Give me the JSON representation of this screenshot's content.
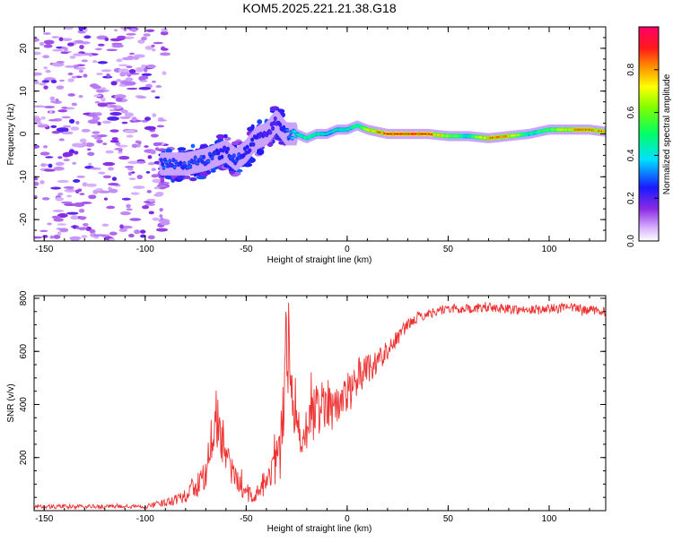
{
  "title": "KOM5.2025.221.21.38.G18",
  "chart_data": [
    {
      "type": "heatmap",
      "title": "KOM5.2025.221.21.38.G18",
      "xlabel": "Height of straight line (km)",
      "ylabel": "Frequency (Hz)",
      "xlim": [
        -155,
        128
      ],
      "ylim": [
        -25,
        25
      ],
      "xticks": [
        -150,
        -100,
        -50,
        0,
        50,
        100
      ],
      "yticks": [
        -20,
        -10,
        0,
        10,
        20
      ],
      "colorbar": {
        "label": "Normalized spectral amplitude",
        "range": [
          0,
          1
        ],
        "ticks": [
          0.0,
          0.2,
          0.4,
          0.6,
          0.8
        ],
        "tick_labels": [
          "0.0",
          "0.2",
          "0.4",
          "0.6",
          "0.8"
        ]
      },
      "ridge": {
        "description": "dominant Doppler frequency track vs height",
        "x": [
          -90,
          -80,
          -70,
          -60,
          -55,
          -50,
          -45,
          -40,
          -35,
          -30,
          -25,
          -20,
          -15,
          -10,
          -5,
          0,
          5,
          10,
          20,
          30,
          40,
          50,
          60,
          70,
          80,
          90,
          100,
          110,
          120,
          128
        ],
        "freq": [
          -7,
          -7,
          -6,
          -4,
          -6,
          -4,
          -1,
          0,
          3,
          0,
          0,
          -1,
          0,
          0,
          1,
          1,
          2,
          1,
          0,
          0,
          0,
          -0.5,
          -0.5,
          -1,
          -0.5,
          0,
          1,
          1,
          1,
          0.5
        ],
        "amplitude": [
          0.3,
          0.3,
          0.3,
          0.25,
          0.3,
          0.25,
          0.25,
          0.2,
          0.2,
          0.3,
          0.45,
          0.55,
          0.5,
          0.45,
          0.45,
          0.5,
          0.55,
          0.7,
          0.95,
          1.0,
          0.95,
          0.7,
          0.5,
          0.9,
          0.85,
          0.5,
          0.6,
          0.8,
          0.9,
          0.85
        ]
      },
      "noise_region_x": [
        -155,
        -90
      ]
    },
    {
      "type": "line",
      "xlabel": "Height of straight line (km)",
      "ylabel": "SNR (v/v)",
      "xlim": [
        -155,
        128
      ],
      "ylim": [
        0,
        810
      ],
      "xticks": [
        -150,
        -100,
        -50,
        0,
        50,
        100
      ],
      "yticks": [
        200,
        400,
        600,
        800
      ],
      "color": "#ee3333",
      "series": [
        {
          "name": "SNR",
          "x": [
            -155,
            -120,
            -100,
            -90,
            -80,
            -70,
            -66,
            -64,
            -62,
            -60,
            -55,
            -50,
            -45,
            -40,
            -35,
            -32,
            -30,
            -28,
            -26,
            -24,
            -20,
            -15,
            -10,
            -5,
            0,
            5,
            10,
            15,
            20,
            25,
            30,
            35,
            40,
            45,
            50,
            60,
            70,
            80,
            90,
            100,
            110,
            120,
            128
          ],
          "y": [
            15,
            15,
            15,
            30,
            60,
            130,
            300,
            360,
            280,
            200,
            110,
            60,
            60,
            110,
            160,
            300,
            700,
            450,
            300,
            280,
            330,
            380,
            420,
            380,
            450,
            500,
            540,
            560,
            610,
            650,
            700,
            730,
            740,
            755,
            760,
            760,
            765,
            760,
            755,
            760,
            765,
            755,
            750
          ],
          "noise_amplitude": [
            8,
            8,
            8,
            15,
            30,
            60,
            120,
            120,
            100,
            80,
            50,
            30,
            30,
            60,
            100,
            150,
            200,
            150,
            120,
            100,
            100,
            100,
            100,
            90,
            80,
            70,
            60,
            50,
            40,
            30,
            20,
            20,
            18,
            18,
            18,
            18,
            18,
            18,
            18,
            18,
            18,
            18,
            18
          ]
        }
      ]
    }
  ]
}
